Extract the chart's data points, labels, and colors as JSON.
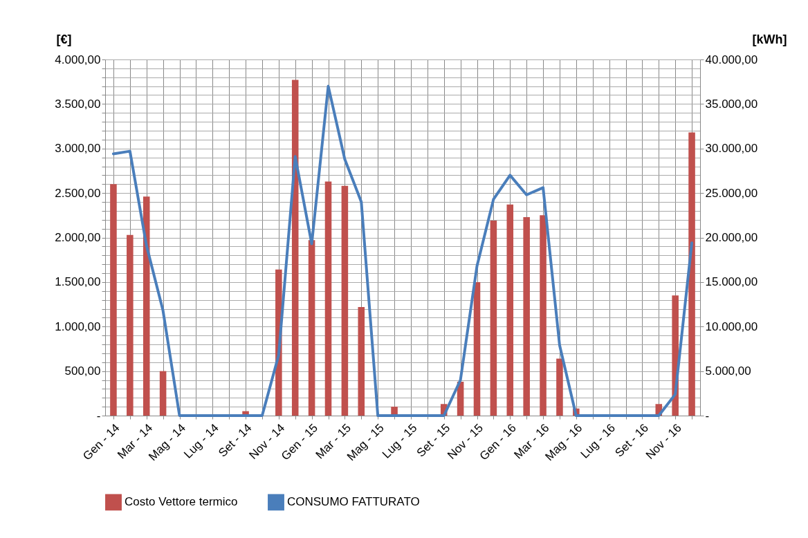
{
  "chart_data": {
    "type": "bar",
    "ylabel": "[€]",
    "y2label": "[kWh]",
    "categories": [
      "Gen - 14",
      null,
      "Mar - 14",
      null,
      "Mag - 14",
      null,
      "Lug - 14",
      null,
      "Set - 14",
      null,
      "Nov - 14",
      null,
      "Gen - 15",
      null,
      "Mar - 15",
      null,
      "Mag - 15",
      null,
      "Lug - 15",
      null,
      "Set - 15",
      null,
      "Nov - 15",
      null,
      "Gen - 16",
      null,
      "Mar - 16",
      null,
      "Mag - 16",
      null,
      "Lug - 16",
      null,
      "Set - 16",
      null,
      "Nov - 16",
      null
    ],
    "series": [
      {
        "name": "Costo Vettore termico",
        "color": "#c0504d",
        "values": [
          2600,
          2030,
          2460,
          500,
          0,
          0,
          0,
          0,
          50,
          0,
          1640,
          3770,
          1970,
          2630,
          2580,
          1220,
          0,
          100,
          0,
          0,
          130,
          380,
          1500,
          2190,
          2370,
          2230,
          2250,
          640,
          80,
          0,
          0,
          0,
          0,
          130,
          1350,
          3180
        ]
      },
      {
        "name": "CONSUMO FATTURATO",
        "type": "line",
        "axis": "y2",
        "color": "#4a7ebb",
        "values": [
          29400,
          29700,
          19100,
          11800,
          0,
          0,
          0,
          0,
          0,
          0,
          6800,
          29100,
          19300,
          37000,
          28800,
          24000,
          0,
          0,
          0,
          0,
          0,
          4000,
          16800,
          24300,
          27000,
          24800,
          25600,
          7900,
          0,
          0,
          0,
          0,
          0,
          0,
          2400,
          19400
        ]
      }
    ],
    "ylim": [
      0,
      4000
    ],
    "yticks": [
      {
        "value": 0,
        "label": "-"
      },
      {
        "value": 100,
        "label": null
      },
      {
        "value": 200,
        "label": null
      },
      {
        "value": 300,
        "label": null
      },
      {
        "value": 400,
        "label": null
      },
      {
        "value": 500,
        "label": "500,00"
      },
      {
        "value": 600,
        "label": null
      },
      {
        "value": 700,
        "label": null
      },
      {
        "value": 800,
        "label": null
      },
      {
        "value": 900,
        "label": null
      },
      {
        "value": 1000,
        "label": "1.000,00"
      },
      {
        "value": 1100,
        "label": null
      },
      {
        "value": 1200,
        "label": null
      },
      {
        "value": 1300,
        "label": null
      },
      {
        "value": 1400,
        "label": null
      },
      {
        "value": 1500,
        "label": "1.500,00"
      },
      {
        "value": 1600,
        "label": null
      },
      {
        "value": 1700,
        "label": null
      },
      {
        "value": 1800,
        "label": null
      },
      {
        "value": 1900,
        "label": null
      },
      {
        "value": 2000,
        "label": "2.000,00"
      },
      {
        "value": 2100,
        "label": null
      },
      {
        "value": 2200,
        "label": null
      },
      {
        "value": 2300,
        "label": null
      },
      {
        "value": 2400,
        "label": null
      },
      {
        "value": 2500,
        "label": "2.500,00"
      },
      {
        "value": 2600,
        "label": null
      },
      {
        "value": 2700,
        "label": null
      },
      {
        "value": 2800,
        "label": null
      },
      {
        "value": 2900,
        "label": null
      },
      {
        "value": 3000,
        "label": "3.000,00"
      },
      {
        "value": 3100,
        "label": null
      },
      {
        "value": 3200,
        "label": null
      },
      {
        "value": 3300,
        "label": null
      },
      {
        "value": 3400,
        "label": null
      },
      {
        "value": 3500,
        "label": "3.500,00"
      },
      {
        "value": 3600,
        "label": null
      },
      {
        "value": 3700,
        "label": null
      },
      {
        "value": 3800,
        "label": null
      },
      {
        "value": 3900,
        "label": null
      },
      {
        "value": 4000,
        "label": "4.000,00"
      }
    ],
    "y2lim": [
      0,
      40000
    ],
    "y2ticks": [
      {
        "value": 0,
        "label": "-"
      },
      {
        "value": 5000,
        "label": "5.000,00"
      },
      {
        "value": 10000,
        "label": "10.000,00"
      },
      {
        "value": 15000,
        "label": "15.000,00"
      },
      {
        "value": 20000,
        "label": "20.000,00"
      },
      {
        "value": 25000,
        "label": "25.000,00"
      },
      {
        "value": 30000,
        "label": "30.000,00"
      },
      {
        "value": 35000,
        "label": "35.000,00"
      },
      {
        "value": 40000,
        "label": "40.000,00"
      }
    ],
    "grid": true,
    "legend": "bottom"
  }
}
